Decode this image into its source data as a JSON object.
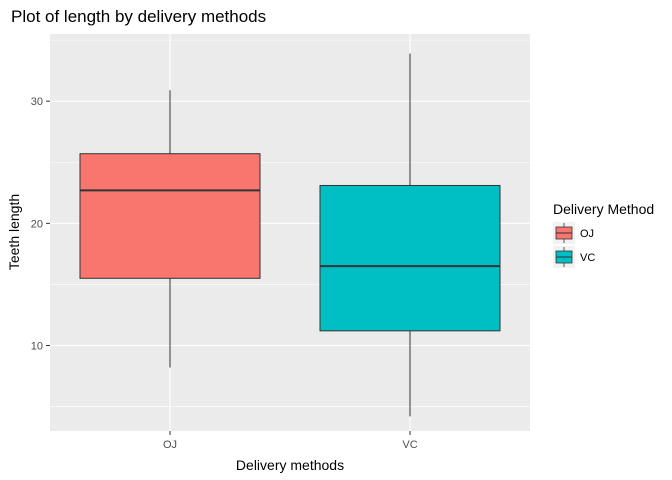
{
  "chart_data": {
    "type": "box",
    "title": "Plot of length by delivery methods",
    "xlabel": "Delivery methods",
    "ylabel": "Teeth length",
    "categories": [
      "OJ",
      "VC"
    ],
    "ylim": [
      3,
      35.5
    ],
    "yticks": [
      10,
      20,
      30
    ],
    "grid": true,
    "legend": {
      "title": "Delivery Method",
      "position": "right",
      "entries": [
        "OJ",
        "VC"
      ]
    },
    "series": [
      {
        "name": "OJ",
        "color": "#F8766D",
        "min": 8.2,
        "q1": 15.5,
        "median": 22.7,
        "q3": 25.7,
        "max": 30.9
      },
      {
        "name": "VC",
        "color": "#00BFC4",
        "min": 4.2,
        "q1": 11.2,
        "median": 16.5,
        "q3": 23.1,
        "max": 33.9
      }
    ]
  }
}
